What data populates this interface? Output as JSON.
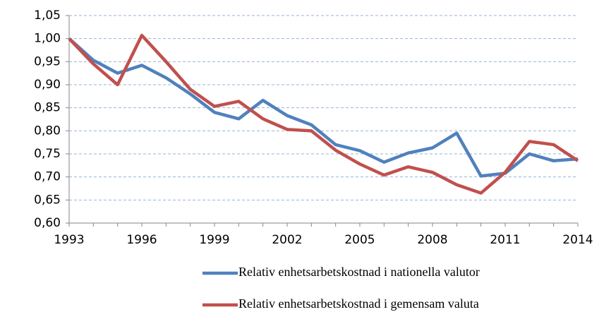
{
  "chart_data": {
    "type": "line",
    "x": [
      1993,
      1994,
      1995,
      1996,
      1997,
      1998,
      1999,
      2000,
      2001,
      2002,
      2003,
      2004,
      2005,
      2006,
      2007,
      2008,
      2009,
      2010,
      2011,
      2012,
      2013,
      2014
    ],
    "xlim": [
      1993,
      2014
    ],
    "xticks": [
      1993,
      1996,
      1999,
      2002,
      2005,
      2008,
      2011,
      2014
    ],
    "ylim": [
      0.6,
      1.05
    ],
    "yticks": [
      {
        "value": 0.6,
        "label": "0,60"
      },
      {
        "value": 0.65,
        "label": "0,65"
      },
      {
        "value": 0.7,
        "label": "0,70"
      },
      {
        "value": 0.75,
        "label": "0,75"
      },
      {
        "value": 0.8,
        "label": "0,80"
      },
      {
        "value": 0.85,
        "label": "0,85"
      },
      {
        "value": 0.9,
        "label": "0,90"
      },
      {
        "value": 0.95,
        "label": "0,95"
      },
      {
        "value": 1.0,
        "label": "1,00"
      },
      {
        "value": 1.05,
        "label": "1,05"
      }
    ],
    "grid": true,
    "series": [
      {
        "name": "Relativ enhetsarbetskostnad i nationella valutor",
        "color": "#4f81bd",
        "values": [
          1.0,
          0.953,
          0.925,
          0.942,
          0.915,
          0.88,
          0.84,
          0.826,
          0.866,
          0.833,
          0.813,
          0.77,
          0.757,
          0.732,
          0.752,
          0.763,
          0.795,
          0.702,
          0.708,
          0.75,
          0.735,
          0.739
        ]
      },
      {
        "name": "Relativ enhetsarbetskostnad i gemensam valuta",
        "color": "#c0504d",
        "values": [
          1.0,
          0.945,
          0.9,
          1.007,
          0.95,
          0.89,
          0.853,
          0.864,
          0.826,
          0.803,
          0.8,
          0.758,
          0.728,
          0.704,
          0.722,
          0.71,
          0.683,
          0.665,
          0.71,
          0.777,
          0.77,
          0.735
        ]
      }
    ]
  }
}
